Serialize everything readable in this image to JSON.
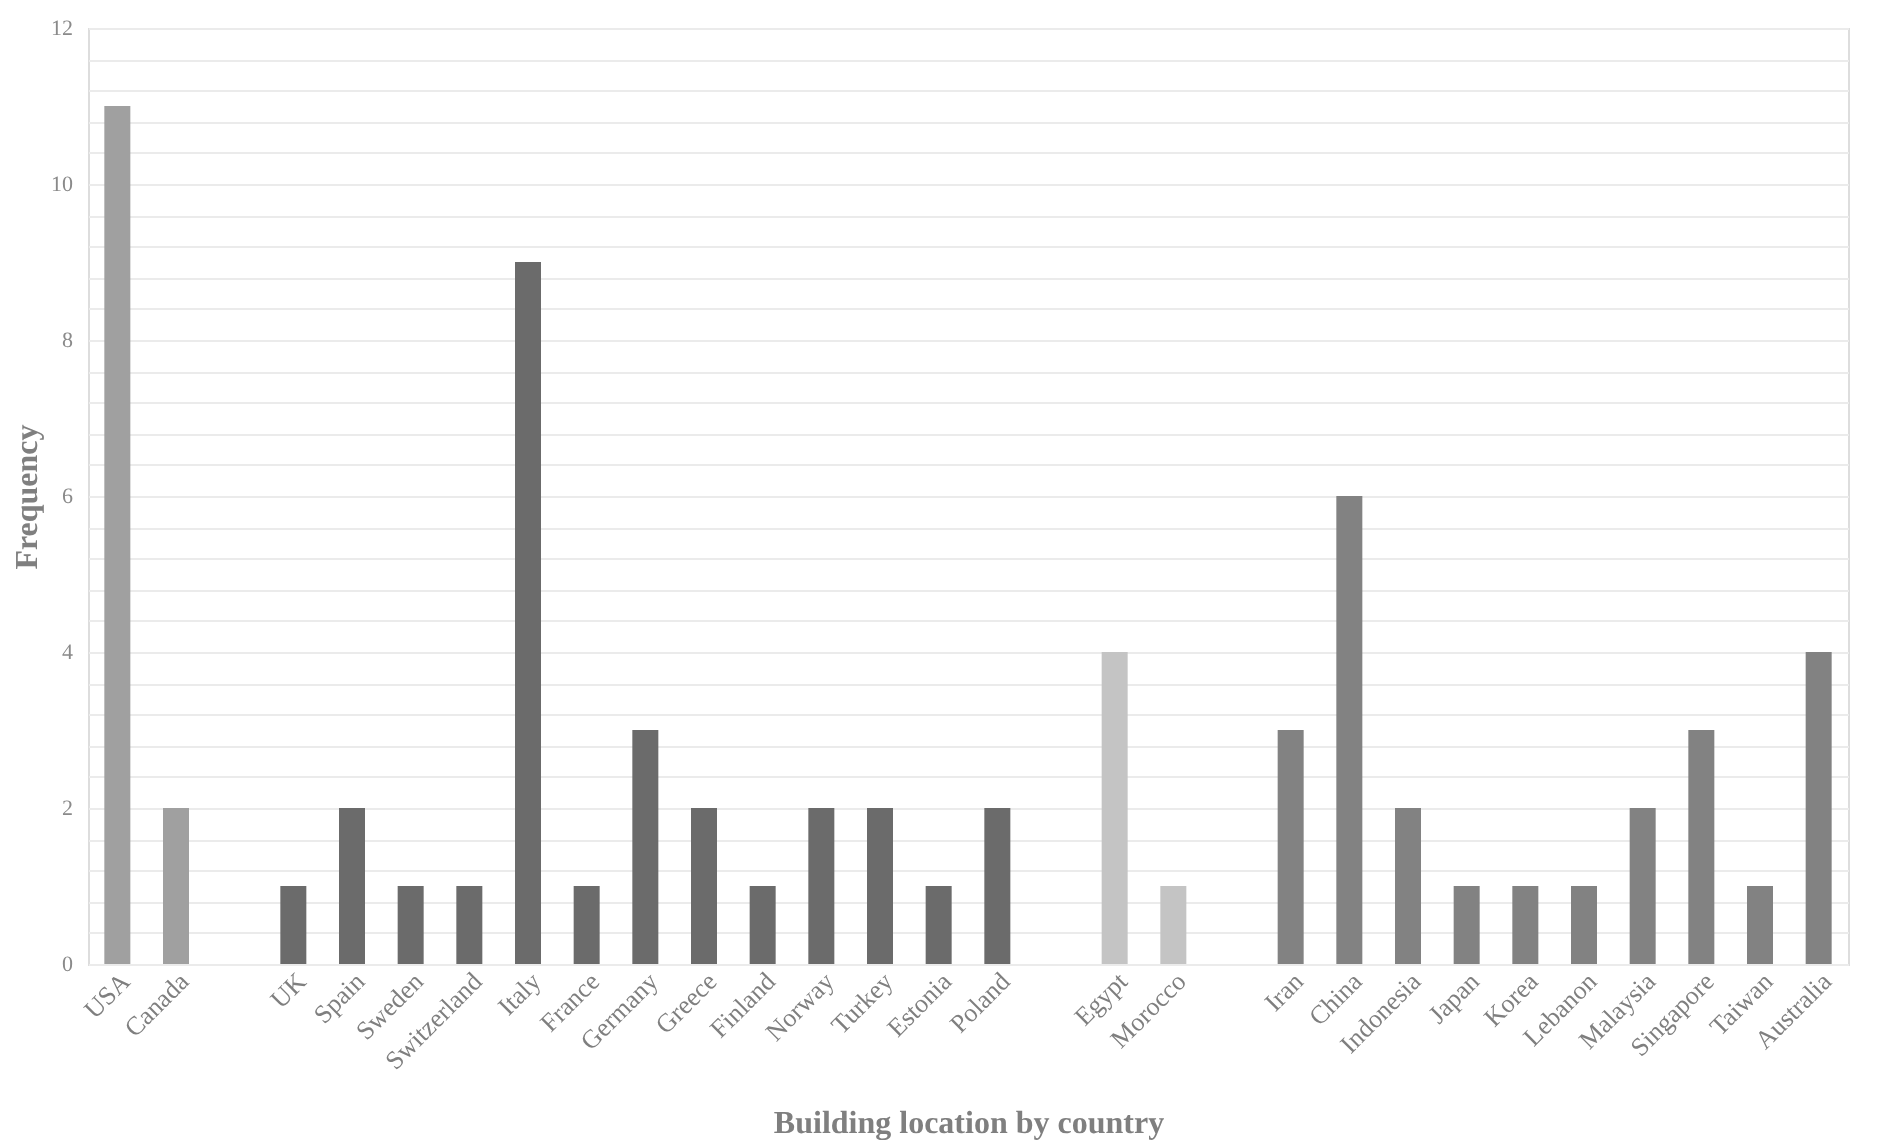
{
  "chart_data": {
    "type": "bar",
    "xlabel": "Building location by country",
    "ylabel": "Frequency",
    "categories": [
      "USA",
      "Canada",
      null,
      "UK",
      "Spain",
      "Sweden",
      "Switzerland",
      "Italy",
      "France",
      "Germany",
      "Greece",
      "Finland",
      "Norway",
      "Turkey",
      "Estonia",
      "Poland",
      null,
      "Egypt",
      "Morocco",
      null,
      "Iran",
      "China",
      "Indonesia",
      "Japan",
      "Korea",
      "Lebanon",
      "Malaysia",
      "Singapore",
      "Taiwan",
      "Australia"
    ],
    "values": [
      11,
      2,
      null,
      1,
      2,
      1,
      1,
      9,
      1,
      3,
      2,
      1,
      2,
      2,
      1,
      2,
      null,
      4,
      1,
      null,
      3,
      6,
      2,
      1,
      1,
      1,
      2,
      3,
      1,
      4
    ],
    "colors": [
      "#a0a0a0",
      "#a0a0a0",
      null,
      "#6b6b6b",
      "#6b6b6b",
      "#6b6b6b",
      "#6b6b6b",
      "#6b6b6b",
      "#6b6b6b",
      "#6b6b6b",
      "#6b6b6b",
      "#6b6b6b",
      "#6b6b6b",
      "#6b6b6b",
      "#6b6b6b",
      "#6b6b6b",
      null,
      "#c4c4c4",
      "#c4c4c4",
      null,
      "#828282",
      "#828282",
      "#828282",
      "#828282",
      "#828282",
      "#828282",
      "#828282",
      "#828282",
      "#828282",
      "#828282"
    ],
    "ylim": [
      0,
      12
    ],
    "yticks": [
      0,
      {
        "value": 0.4,
        "label": null
      },
      {
        "value": 0.8,
        "label": null
      },
      {
        "value": 1.2,
        "label": null
      },
      {
        "value": 1.6,
        "label": null
      },
      2,
      {
        "value": 2.4,
        "label": null
      },
      {
        "value": 2.8,
        "label": null
      },
      {
        "value": 3.2,
        "label": null
      },
      {
        "value": 3.6,
        "label": null
      },
      4,
      {
        "value": 4.4,
        "label": null
      },
      {
        "value": 4.8,
        "label": null
      },
      {
        "value": 5.2,
        "label": null
      },
      {
        "value": 5.6,
        "label": null
      },
      6,
      {
        "value": 6.4,
        "label": null
      },
      {
        "value": 6.8,
        "label": null
      },
      {
        "value": 7.2,
        "label": null
      },
      {
        "value": 7.6,
        "label": null
      },
      8,
      {
        "value": 8.4,
        "label": null
      },
      {
        "value": 8.8,
        "label": null
      },
      {
        "value": 9.2,
        "label": null
      },
      {
        "value": 9.6,
        "label": null
      },
      10,
      {
        "value": 10.4,
        "label": null
      },
      {
        "value": 10.8,
        "label": null
      },
      {
        "value": 11.2,
        "label": null
      },
      {
        "value": 11.6,
        "label": null
      },
      12
    ],
    "grid": "y"
  }
}
